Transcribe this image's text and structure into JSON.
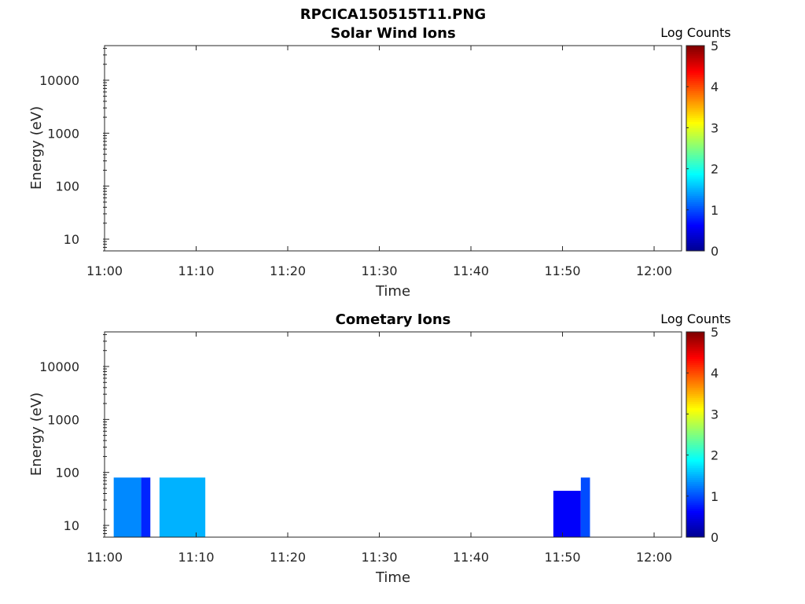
{
  "figure_title": "RPCICA150515T11.PNG",
  "colors": {
    "axis": "#262626",
    "background": "#ffffff",
    "jet": [
      "#00008f",
      "#0000ff",
      "#007fff",
      "#00ffff",
      "#7fff7f",
      "#ffff00",
      "#ff7f00",
      "#ff0000",
      "#7f0000"
    ]
  },
  "chart_data": [
    {
      "type": "heatmap",
      "title": "Solar Wind Ions",
      "xlabel": "Time",
      "ylabel": "Energy (eV)",
      "yscale": "log",
      "ylim": [
        6,
        45000
      ],
      "xlim": [
        "11:00",
        "12:03"
      ],
      "x_ticks": [
        "11:00",
        "11:10",
        "11:20",
        "11:30",
        "11:40",
        "11:50",
        "12:00"
      ],
      "y_ticks": [
        "10",
        "100",
        "1000",
        "10000"
      ],
      "colorbar": {
        "label": "Log Counts",
        "min": 0,
        "max": 5,
        "ticks": [
          "0",
          "1",
          "2",
          "3",
          "4",
          "5"
        ]
      },
      "blocks": []
    },
    {
      "type": "heatmap",
      "title": "Cometary Ions",
      "xlabel": "Time",
      "ylabel": "Energy (eV)",
      "yscale": "log",
      "ylim": [
        6,
        45000
      ],
      "xlim": [
        "11:00",
        "12:03"
      ],
      "x_ticks": [
        "11:00",
        "11:10",
        "11:20",
        "11:30",
        "11:40",
        "11:50",
        "12:00"
      ],
      "y_ticks": [
        "10",
        "100",
        "1000",
        "10000"
      ],
      "colorbar": {
        "label": "Log Counts",
        "min": 0,
        "max": 5,
        "ticks": [
          "0",
          "1",
          "2",
          "3",
          "4",
          "5"
        ]
      },
      "blocks": [
        {
          "t_start": "11:01",
          "t_end": "11:04",
          "e_min": 6,
          "e_max": 80,
          "log_counts": 1.3
        },
        {
          "t_start": "11:04",
          "t_end": "11:05",
          "e_min": 6,
          "e_max": 80,
          "log_counts": 0.8
        },
        {
          "t_start": "11:06",
          "t_end": "11:11",
          "e_min": 6,
          "e_max": 80,
          "log_counts": 1.5
        },
        {
          "t_start": "11:49",
          "t_end": "11:52",
          "e_min": 6,
          "e_max": 45,
          "log_counts": 0.6
        },
        {
          "t_start": "11:52",
          "t_end": "11:53",
          "e_min": 6,
          "e_max": 80,
          "log_counts": 1.0
        }
      ]
    }
  ]
}
